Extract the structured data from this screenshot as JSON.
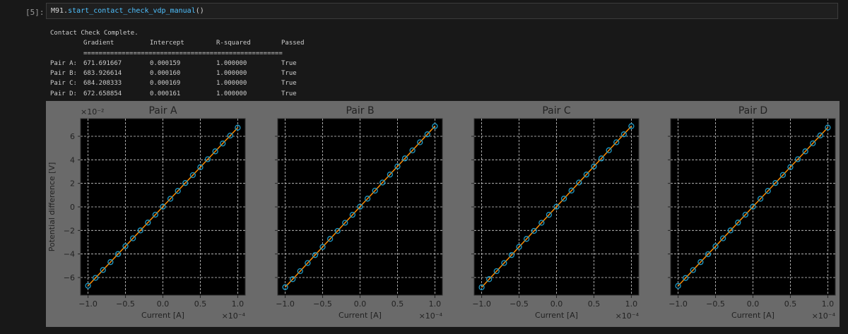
{
  "cell": {
    "prompt": "[5]:",
    "code_obj": "M91.",
    "code_fn": "start_contact_check_vdp_manual",
    "code_paren": "()"
  },
  "output": {
    "title": "Contact Check Complete.",
    "headers": [
      "Gradient",
      "Intercept",
      "R-squared",
      "Passed"
    ],
    "separator": "====================================================",
    "rows": [
      [
        "Pair A:",
        "671.691667",
        "0.000159",
        "1.000000",
        "True"
      ],
      [
        "Pair B:",
        "683.926614",
        "0.000160",
        "1.000000",
        "True"
      ],
      [
        "Pair C:",
        "684.208333",
        "0.000169",
        "1.000000",
        "True"
      ],
      [
        "Pair D:",
        "672.658854",
        "0.000161",
        "1.000000",
        "True"
      ]
    ]
  },
  "colors": {
    "marker": "#1f9bc7",
    "line": "#ff8c00",
    "axes_bg": "#000000",
    "figure_bg": "#6a6a6a",
    "grid": "#d0d0d0"
  },
  "chart_data": [
    {
      "type": "line",
      "title": "Pair A",
      "xlabel": "Current [A]",
      "ylabel": "Potential difference [V]",
      "x_offset_label": "×10⁻⁴",
      "y_offset_label": "×10⁻²",
      "xlim": [
        -1.1,
        1.1
      ],
      "ylim": [
        -7.5,
        7.5
      ],
      "grid": true,
      "sharey": true,
      "xticks": [
        "−1.0",
        "−0.5",
        "0.0",
        "0.5",
        "1.0"
      ],
      "yticks": [
        "−6",
        "−4",
        "−2",
        "0",
        "2",
        "4",
        "6"
      ],
      "x": [
        -1.0,
        -0.9,
        -0.8,
        -0.7,
        -0.6,
        -0.5,
        -0.4,
        -0.3,
        -0.2,
        -0.1,
        0.0,
        0.1,
        0.2,
        0.3,
        0.4,
        0.5,
        0.6,
        0.7,
        0.8,
        0.9,
        1.0
      ],
      "y": [
        -6.7,
        -6.03,
        -5.36,
        -4.69,
        -4.01,
        -3.34,
        -2.67,
        -2.0,
        -1.33,
        -0.66,
        0.02,
        0.69,
        1.36,
        2.03,
        2.7,
        3.37,
        4.05,
        4.72,
        5.39,
        6.06,
        6.73
      ]
    },
    {
      "type": "line",
      "title": "Pair B",
      "xlabel": "Current [A]",
      "x_offset_label": "×10⁻⁴",
      "xlim": [
        -1.1,
        1.1
      ],
      "ylim": [
        -7.5,
        7.5
      ],
      "grid": true,
      "xticks": [
        "−1.0",
        "−0.5",
        "0.0",
        "0.5",
        "1.0"
      ],
      "x": [
        -1.0,
        -0.9,
        -0.8,
        -0.7,
        -0.6,
        -0.5,
        -0.4,
        -0.3,
        -0.2,
        -0.1,
        0.0,
        0.1,
        0.2,
        0.3,
        0.4,
        0.5,
        0.6,
        0.7,
        0.8,
        0.9,
        1.0
      ],
      "y": [
        -6.82,
        -6.14,
        -5.46,
        -4.77,
        -4.09,
        -3.4,
        -2.72,
        -2.04,
        -1.35,
        -0.67,
        0.02,
        0.7,
        1.38,
        2.07,
        2.75,
        3.44,
        4.12,
        4.8,
        5.49,
        6.17,
        6.86
      ]
    },
    {
      "type": "line",
      "title": "Pair C",
      "xlabel": "Current [A]",
      "x_offset_label": "×10⁻⁴",
      "xlim": [
        -1.1,
        1.1
      ],
      "ylim": [
        -7.5,
        7.5
      ],
      "grid": true,
      "xticks": [
        "−1.0",
        "−0.5",
        "0.0",
        "0.5",
        "1.0"
      ],
      "x": [
        -1.0,
        -0.9,
        -0.8,
        -0.7,
        -0.6,
        -0.5,
        -0.4,
        -0.3,
        -0.2,
        -0.1,
        0.0,
        0.1,
        0.2,
        0.3,
        0.4,
        0.5,
        0.6,
        0.7,
        0.8,
        0.9,
        1.0
      ],
      "y": [
        -6.83,
        -6.14,
        -5.46,
        -4.77,
        -4.09,
        -3.4,
        -2.72,
        -2.04,
        -1.35,
        -0.67,
        0.02,
        0.7,
        1.39,
        2.07,
        2.75,
        3.44,
        4.12,
        4.81,
        5.49,
        6.17,
        6.86
      ]
    },
    {
      "type": "line",
      "title": "Pair D",
      "xlabel": "Current [A]",
      "x_offset_label": "×10⁻⁴",
      "xlim": [
        -1.1,
        1.1
      ],
      "ylim": [
        -7.5,
        7.5
      ],
      "grid": true,
      "xticks": [
        "−1.0",
        "−0.5",
        "0.0",
        "0.5",
        "1.0"
      ],
      "x": [
        -1.0,
        -0.9,
        -0.8,
        -0.7,
        -0.6,
        -0.5,
        -0.4,
        -0.3,
        -0.2,
        -0.1,
        0.0,
        0.1,
        0.2,
        0.3,
        0.4,
        0.5,
        0.6,
        0.7,
        0.8,
        0.9,
        1.0
      ],
      "y": [
        -6.71,
        -6.04,
        -5.37,
        -4.69,
        -4.02,
        -3.35,
        -2.67,
        -2.0,
        -1.33,
        -0.66,
        0.02,
        0.69,
        1.36,
        2.03,
        2.71,
        3.38,
        4.05,
        4.72,
        5.4,
        6.07,
        6.74
      ]
    }
  ]
}
